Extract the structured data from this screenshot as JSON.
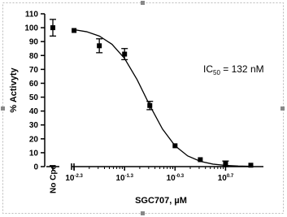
{
  "chart_data": {
    "type": "scatter",
    "x_label": "SGC707, µM",
    "y_label": "% Activyty",
    "annotation": {
      "text": "IC",
      "subscript": "50",
      "rest": " = 132 nM"
    },
    "control": {
      "category": "No Cpd",
      "value": 100,
      "error": 6
    },
    "x": [
      0.005012,
      0.01585,
      0.05012,
      0.1585,
      0.5012,
      1.585,
      5.012,
      15.85
    ],
    "values": [
      98,
      87,
      81,
      44,
      15,
      5,
      2,
      1
    ],
    "errors": [
      0,
      5,
      4,
      3,
      0,
      0,
      2,
      0
    ],
    "fit_curve": {
      "x": [
        0.005012,
        0.008913,
        0.01585,
        0.02818,
        0.05012,
        0.08913,
        0.1585,
        0.2818,
        0.5012,
        0.8913,
        1.585,
        2.818,
        5.012,
        8.913,
        15.85
      ],
      "values": [
        98.6,
        97.1,
        94.0,
        88.1,
        77.9,
        62.5,
        44.0,
        27.1,
        15.0,
        7.7,
        3.8,
        1.8,
        0.9,
        0.4,
        0.2
      ]
    },
    "color": "#000000",
    "xscale": "log",
    "xlim": [
      0.004467,
      28.18
    ],
    "xticks": [
      {
        "value": 0.005012,
        "label": "10",
        "exponent": "-2.3"
      },
      {
        "value": 0.05012,
        "label": "10",
        "exponent": "-1.3"
      },
      {
        "value": 0.5012,
        "label": "10",
        "exponent": "-0.3"
      },
      {
        "value": 5.012,
        "label": "10",
        "exponent": "0.7"
      }
    ],
    "ylim": [
      0,
      110
    ],
    "yticks": [
      0,
      10,
      20,
      30,
      40,
      50,
      60,
      70,
      80,
      90,
      100,
      110
    ]
  }
}
